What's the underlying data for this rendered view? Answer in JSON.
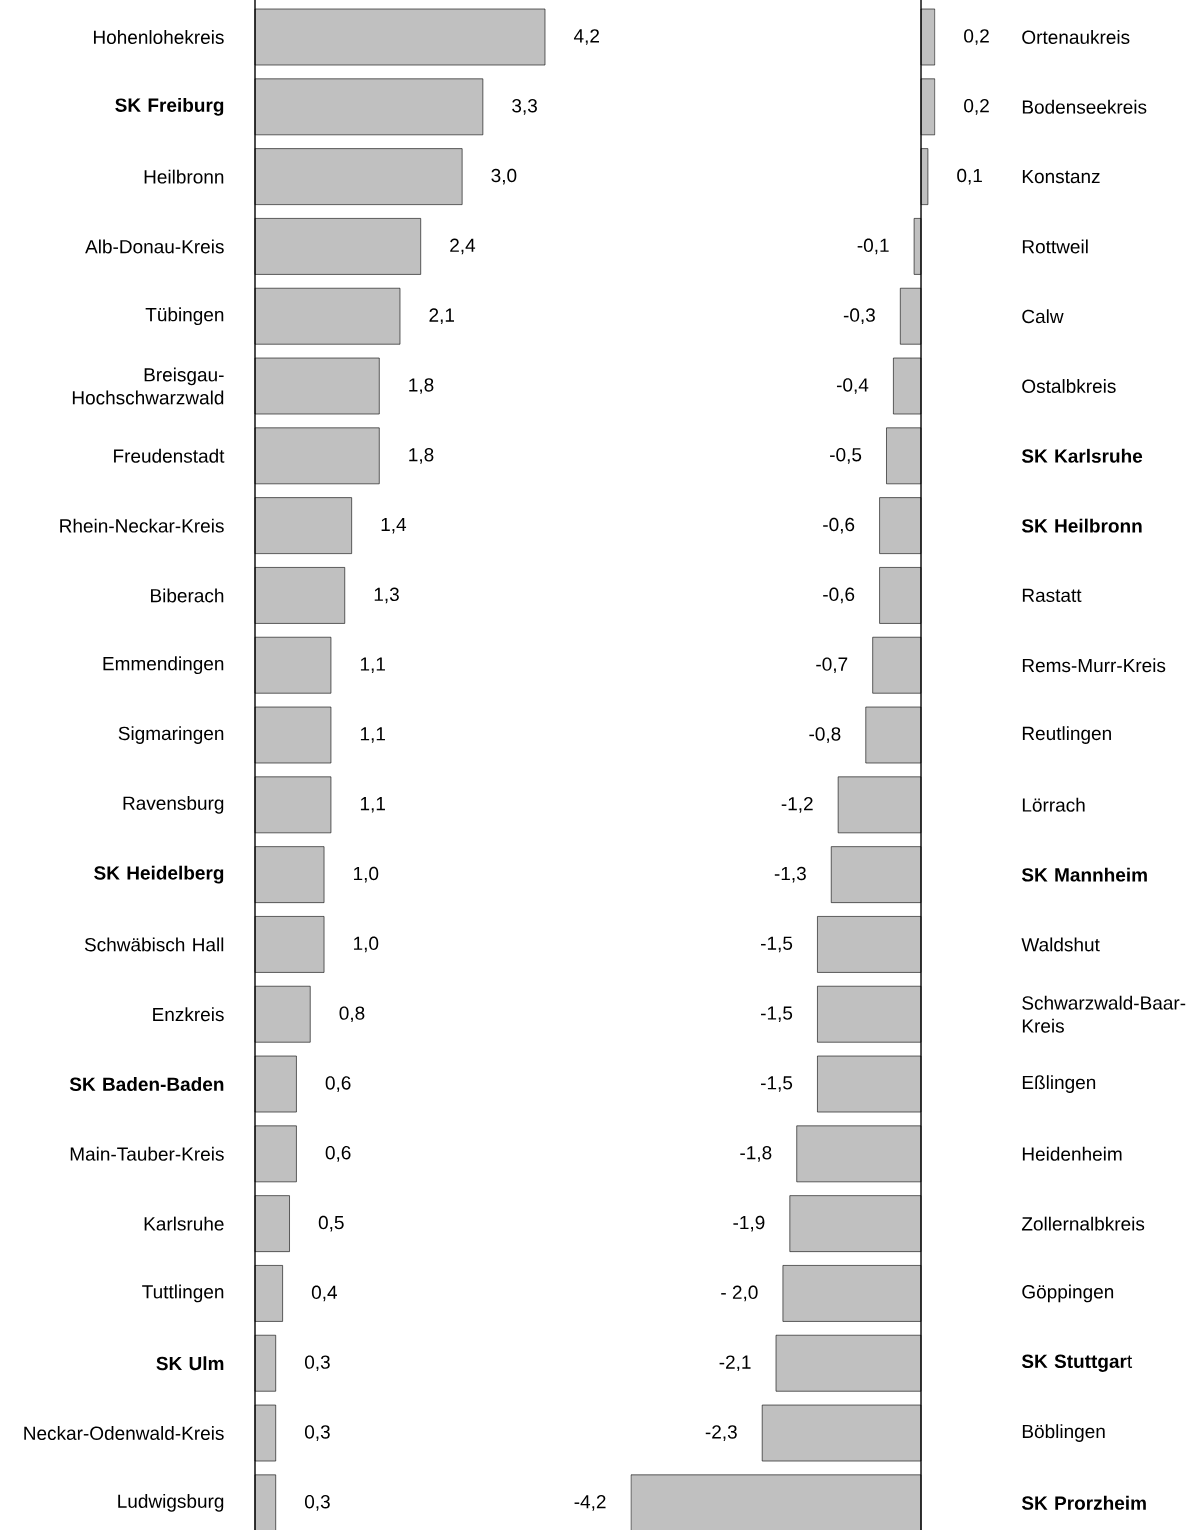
{
  "chart_data": [
    {
      "type": "bar",
      "orientation": "horizontal",
      "color": "#c0c0c0",
      "categories": [
        "Hohenlohekreis",
        "**SK Freiburg**",
        "Heilbronn",
        "Alb-Donau-Kreis",
        "Tübingen",
        "Breisgau-Hochschwarzwald",
        "Freudenstadt",
        "Rhein-Neckar-Kreis",
        "Biberach",
        "Emmendingen",
        "Sigmaringen",
        "Ravensburg",
        "**SK Heidelberg**",
        "Schwäbisch Hall",
        "Enzkreis",
        "**SK Baden-Baden**",
        "Main-Tauber-Kreis",
        "Karlsruhe",
        "Tuttlingen",
        "**SK Ulm**",
        "Neckar-Odenwald-Kreis",
        "Ludwigsburg"
      ],
      "values": [
        4.2,
        3.3,
        3.0,
        2.4,
        2.1,
        1.8,
        1.8,
        1.4,
        1.3,
        1.1,
        1.1,
        1.1,
        1.0,
        1.0,
        0.8,
        0.6,
        0.6,
        0.5,
        0.4,
        0.3,
        0.3,
        0.3
      ],
      "value_labels": [
        "4,2",
        "3,3",
        "3,0",
        "2,4",
        "2,1",
        "1,8",
        "1,8",
        "1,4",
        "1,3",
        "1,1",
        "1,1",
        "1,1",
        "1,0",
        "1,0",
        "0,8",
        "0,6",
        "0,6",
        "0,5",
        "0,4",
        "0,3",
        "0,3",
        "0,3"
      ]
    },
    {
      "type": "bar",
      "orientation": "horizontal",
      "color": "#c0c0c0",
      "categories": [
        "Ortenaukreis",
        "Bodenseekreis",
        "Konstanz",
        "Rottweil",
        "Calw",
        "Ostalbkreis",
        "**SK Karlsruhe**",
        "**SK Heilbronn**",
        "Rastatt",
        "Rems-Murr-Kreis",
        "Reutlingen",
        "Lörrach",
        "**SK Mannheim**",
        "Waldshut",
        "Schwarzwald-Baar-Kreis",
        "Eßlingen",
        "Heidenheim",
        "Zollernalbkreis",
        "Göppingen",
        "**SK Stuttgar**t",
        "Böblingen",
        "**SK Prorzheim**"
      ],
      "values": [
        0.2,
        0.2,
        0.1,
        -0.1,
        -0.3,
        -0.4,
        -0.5,
        -0.6,
        -0.6,
        -0.7,
        -0.8,
        -1.2,
        -1.3,
        -1.5,
        -1.5,
        -1.5,
        -1.8,
        -1.9,
        -2.0,
        -2.1,
        -2.3,
        -4.2
      ],
      "value_labels": [
        "0,2",
        "0,2",
        "0,1",
        "-0,1",
        "-0,3",
        "-0,4",
        "-0,5",
        "-0,6",
        "-0,6",
        "-0,7",
        "-0,8",
        "-1,2",
        "-1,3",
        "-1,5",
        "-1,5",
        "-1,5",
        "-1,8",
        "-1,9",
        "- 2,0",
        "-2,1",
        "-2,3",
        "-4,2"
      ]
    }
  ]
}
